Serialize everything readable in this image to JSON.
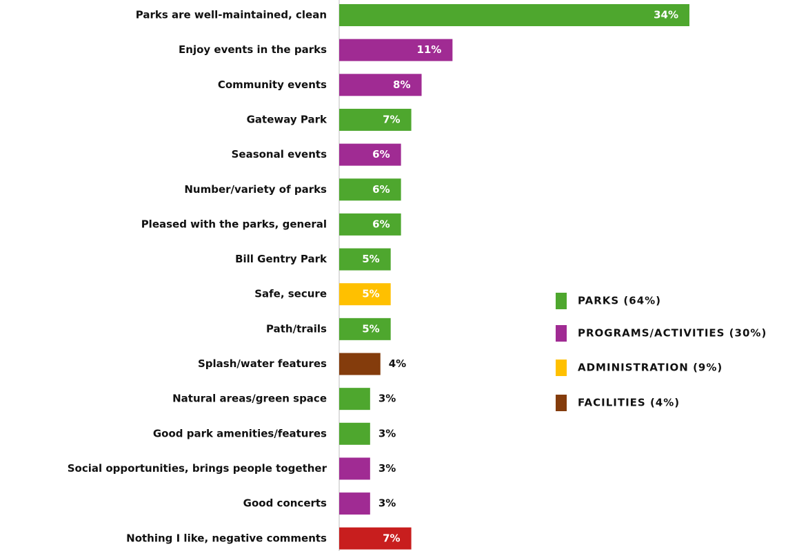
{
  "chart_data": {
    "type": "bar",
    "orientation": "horizontal",
    "categories": [
      "Parks are well-maintained, clean",
      "Enjoy events in the parks",
      "Community events",
      "Gateway Park",
      "Seasonal events",
      "Number/variety of parks",
      "Pleased with the parks, general",
      "Bill Gentry Park",
      "Safe, secure",
      "Path/trails",
      "Splash/water features",
      "Natural areas/green space",
      "Good park amenities/features",
      "Social opportunities, brings people together",
      "Good concerts",
      "Nothing I like, negative comments"
    ],
    "values": [
      34,
      11,
      8,
      7,
      6,
      6,
      6,
      5,
      5,
      5,
      4,
      3,
      3,
      3,
      3,
      7
    ],
    "value_labels": [
      "34%",
      "11%",
      "8%",
      "7%",
      "6%",
      "6%",
      "6%",
      "5%",
      "5%",
      "5%",
      "4%",
      "3%",
      "3%",
      "3%",
      "3%",
      "7%"
    ],
    "colors": [
      "#4ea72e",
      "#a02b93",
      "#a02b93",
      "#4ea72e",
      "#a02b93",
      "#4ea72e",
      "#4ea72e",
      "#4ea72e",
      "#ffc000",
      "#4ea72e",
      "#843c0c",
      "#4ea72e",
      "#4ea72e",
      "#a02b93",
      "#a02b93",
      "#c81e1e"
    ],
    "legend": [
      {
        "label": "PARKS (64%)",
        "color": "#4ea72e"
      },
      {
        "label": "PROGRAMS/ACTIVITIES (30%)",
        "color": "#a02b93"
      },
      {
        "label": "ADMINISTRATION (9%)",
        "color": "#ffc000"
      },
      {
        "label": "FACILITIES (4%)",
        "color": "#843c0c"
      }
    ]
  }
}
